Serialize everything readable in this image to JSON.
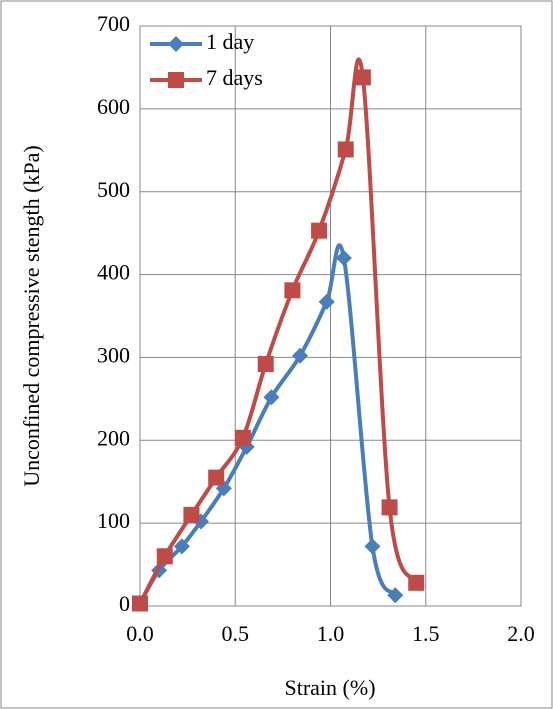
{
  "chart_data": {
    "type": "line",
    "xlabel": "Strain (%)",
    "ylabel": "Unconfined compressive stength (kPa)",
    "series": [
      {
        "name": "1 day",
        "color": "#4a7ebb",
        "marker": "diamond",
        "x": [
          0,
          0.1,
          0.22,
          0.32,
          0.44,
          0.56,
          0.69,
          0.84,
          0.98,
          1.07,
          1.22,
          1.34
        ],
        "values": [
          3,
          43,
          72,
          102,
          142,
          192,
          252,
          302,
          367,
          420,
          72,
          13
        ]
      },
      {
        "name": "7 days",
        "color": "#be4b48",
        "marker": "square",
        "x": [
          0,
          0.13,
          0.27,
          0.4,
          0.54,
          0.66,
          0.8,
          0.94,
          1.08,
          1.17,
          1.31,
          1.45
        ],
        "values": [
          3,
          60,
          110,
          155,
          203,
          292,
          381,
          453,
          551,
          638,
          119,
          28
        ]
      }
    ],
    "xlim": [
      0,
      2
    ],
    "xticks": [
      {
        "value": 0,
        "label": "0.0"
      },
      0.5,
      {
        "value": 1,
        "label": "1.0"
      },
      1.5,
      {
        "value": 2,
        "label": "2.0"
      }
    ],
    "ylim": [
      0,
      700
    ],
    "yticks": [
      0,
      100,
      200,
      300,
      400,
      500,
      600,
      700
    ],
    "grid": true,
    "legend": "top-left"
  }
}
